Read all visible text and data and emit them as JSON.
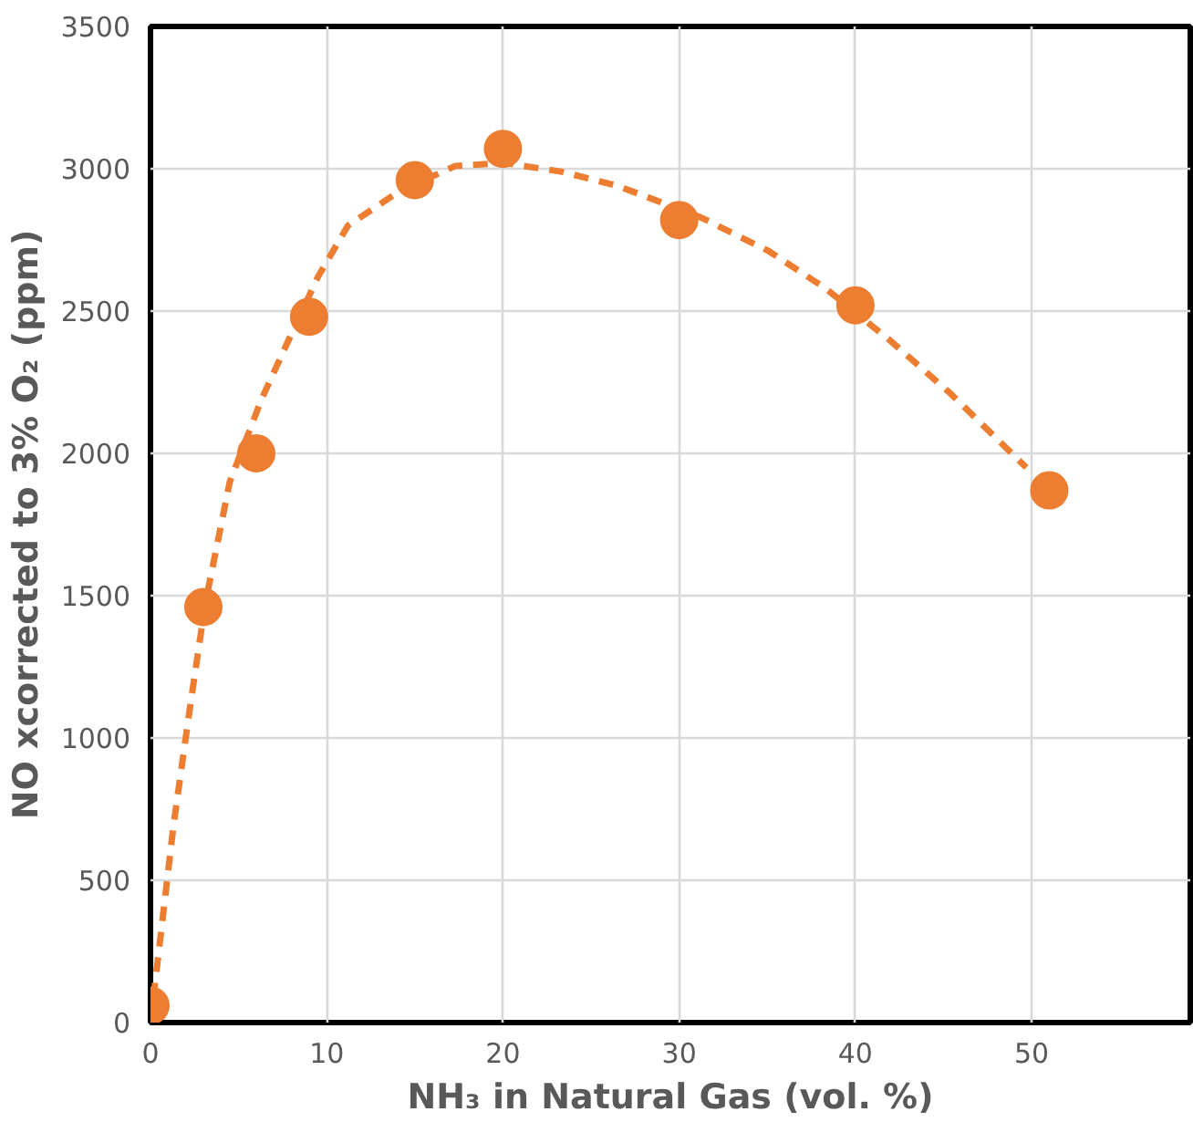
{
  "chart_data": {
    "type": "scatter",
    "xlabel": "NH₃ in Natural Gas (vol. %)",
    "ylabel": "NO xcorrected to 3% O₂ (ppm)",
    "xlim": [
      0,
      59
    ],
    "xticks": [
      0,
      10,
      20,
      30,
      40,
      50
    ],
    "ylim": [
      0,
      3500
    ],
    "yticks": [
      0,
      500,
      1000,
      1500,
      2000,
      2500,
      3000,
      3500
    ],
    "grid": true,
    "series": [
      {
        "marker": "circle",
        "color": "#ed7d31",
        "x": [
          0,
          3,
          6,
          9,
          15,
          20,
          30,
          40,
          51
        ],
        "values": [
          60,
          1460,
          2000,
          2480,
          2960,
          3070,
          2820,
          2520,
          1870
        ]
      },
      {
        "type": "line",
        "color": "#ed7d31",
        "line_style": "dashed",
        "x": [
          0,
          1.3,
          2.2,
          3.1,
          4.5,
          6.3,
          7.7,
          9.5,
          11.2,
          14.1,
          17.3,
          20.1,
          23.3,
          26.5,
          31.2,
          35.1,
          38.3,
          41.9,
          45.4,
          49.7
        ],
        "values": [
          0,
          690,
          1090,
          1470,
          1900,
          2190,
          2380,
          2620,
          2800,
          2920,
          3010,
          3020,
          2990,
          2940,
          2830,
          2710,
          2580,
          2400,
          2210,
          1950
        ]
      }
    ]
  }
}
